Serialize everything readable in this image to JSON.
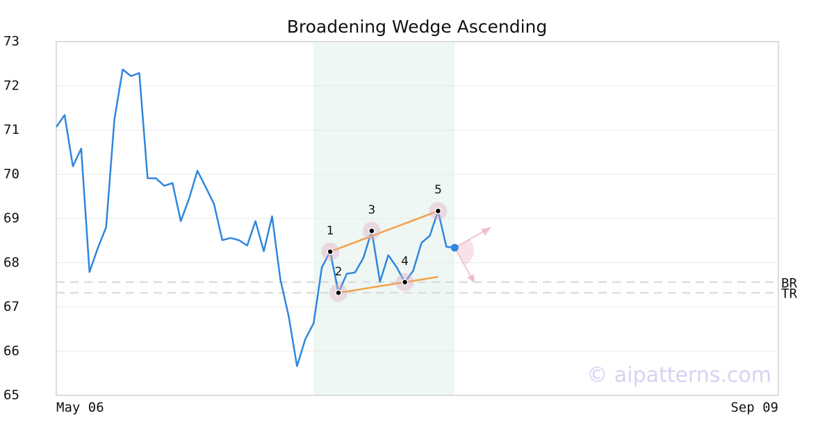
{
  "chart_data": {
    "type": "line",
    "title": "Broadening Wedge Ascending",
    "categories": [
      "May 06",
      null,
      null,
      null,
      null,
      null,
      null,
      null,
      null,
      null,
      null,
      null,
      null,
      null,
      null,
      null,
      null,
      null,
      null,
      null,
      null,
      null,
      null,
      null,
      null,
      null,
      null,
      null,
      null,
      null,
      null,
      null,
      null,
      null,
      null,
      null,
      null,
      null,
      null,
      null,
      null,
      null,
      null,
      null,
      null,
      null,
      null,
      null,
      null,
      null,
      null,
      null,
      null,
      null,
      null,
      null,
      null,
      null,
      null,
      null,
      null,
      null,
      null,
      null,
      null,
      null,
      null,
      null,
      null,
      null,
      null,
      null,
      null,
      null,
      null,
      null,
      null,
      null,
      null,
      null,
      null,
      null,
      null,
      null,
      null,
      null,
      null,
      "Sep 09"
    ],
    "series": [
      {
        "color": "#2e86de",
        "values": [
          71.07,
          71.34,
          70.18,
          70.58,
          67.79,
          68.33,
          68.8,
          71.24,
          72.37,
          72.22,
          72.29,
          69.91,
          69.91,
          69.74,
          69.8,
          68.94,
          69.45,
          70.08,
          69.71,
          69.33,
          68.51,
          68.56,
          68.51,
          68.39,
          68.94,
          68.26,
          69.05,
          67.62,
          66.79,
          65.66,
          66.27,
          66.63,
          67.9,
          68.25,
          67.32,
          67.75,
          67.78,
          68.11,
          68.72,
          67.57,
          68.17,
          67.9,
          67.56,
          67.82,
          68.45,
          68.61,
          69.17,
          68.36,
          68.34,
          null,
          null,
          null,
          null,
          null,
          null,
          null,
          null,
          null,
          null,
          null,
          null,
          null,
          null,
          null,
          null,
          null,
          null,
          null,
          null,
          null,
          null,
          null,
          null,
          null,
          null,
          null,
          null,
          null,
          null,
          null,
          null,
          null,
          null,
          null,
          null,
          null,
          null,
          null
        ]
      }
    ],
    "ylim": [
      65,
      73
    ],
    "yticks": [
      65,
      66,
      67,
      68,
      69,
      70,
      71,
      72,
      73
    ],
    "grid": true,
    "highlight": {
      "from": 31,
      "to": 48,
      "color": "#eef7f3"
    },
    "annotations": [
      {
        "label": "1",
        "x": 33,
        "value": 68.25
      },
      {
        "label": "2",
        "x": 34,
        "value": 67.32
      },
      {
        "label": "3",
        "x": 38,
        "value": 68.72
      },
      {
        "label": "4",
        "x": 42,
        "value": 67.56
      },
      {
        "label": "5",
        "x": 46,
        "value": 69.17
      }
    ],
    "trendlines": [
      {
        "x": [
          33,
          46
        ],
        "values": [
          68.25,
          69.17
        ],
        "color": "#f4a04a"
      },
      {
        "x": [
          34,
          46
        ],
        "values": [
          67.32,
          67.68
        ],
        "color": "#f4a04a"
      }
    ],
    "levels": [
      {
        "label": "BR",
        "value": 67.56
      },
      {
        "label": "TR",
        "value": 67.32
      }
    ],
    "watermark": "© aipatterns.com"
  }
}
